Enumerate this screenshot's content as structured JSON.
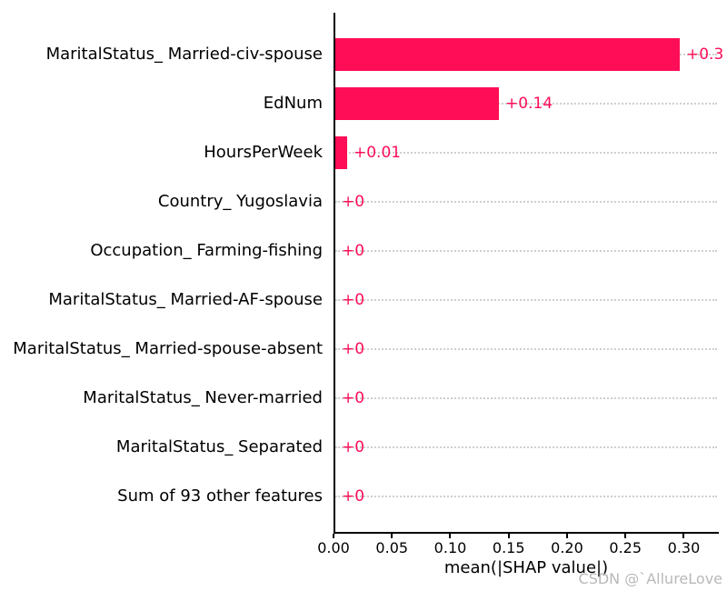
{
  "watermark": "CSDN @`AllureLove",
  "colors": {
    "bar": "#ff0d57",
    "gridline": "#cfcfcf",
    "axis": "#000000",
    "watermark": "#b9b9b9"
  },
  "chart_data": {
    "type": "bar",
    "orientation": "horizontal",
    "title": "",
    "xlabel": "mean(|SHAP value|)",
    "ylabel": "",
    "categories": [
      "MaritalStatus_ Married-civ-spouse",
      "EdNum",
      "HoursPerWeek",
      "Country_ Yugoslavia",
      "Occupation_ Farming-fishing",
      "MaritalStatus_ Married-AF-spouse",
      "MaritalStatus_ Married-spouse-absent",
      "MaritalStatus_ Never-married",
      "MaritalStatus_ Separated",
      "Sum of 93 other features"
    ],
    "values": [
      0.295,
      0.14,
      0.01,
      0,
      0,
      0,
      0,
      0,
      0,
      0
    ],
    "value_labels": [
      "+0.3",
      "+0.14",
      "+0.01",
      "+0",
      "+0",
      "+0",
      "+0",
      "+0",
      "+0",
      "+0"
    ],
    "xlim": [
      0,
      0.33
    ],
    "xticks": [
      0,
      0.05,
      0.1,
      0.15,
      0.2,
      0.25,
      0.3
    ],
    "xtick_labels": [
      "0.00",
      "0.05",
      "0.10",
      "0.15",
      "0.20",
      "0.25",
      "0.30"
    ],
    "grid": "horizontal-dotted",
    "legend": "none",
    "bar_color": "#ff0d57"
  }
}
